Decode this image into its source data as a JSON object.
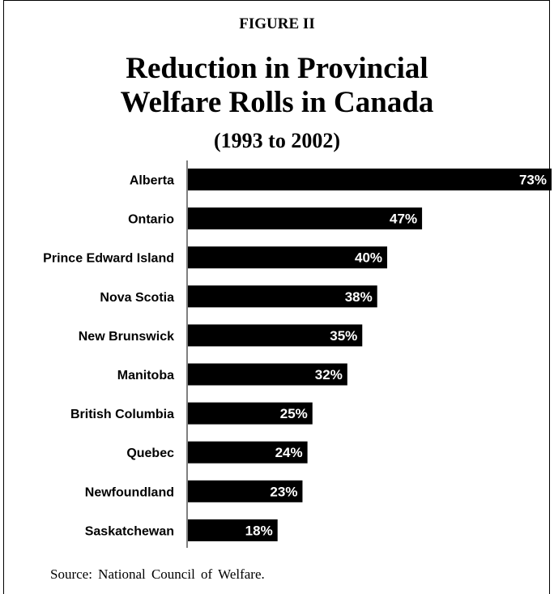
{
  "figure_label": "FIGURE II",
  "title_line1": "Reduction in Provincial",
  "title_line2": "Welfare Rolls in Canada",
  "subtitle": "(1993 to 2002)",
  "source": "Source:  National Council of Welfare.",
  "chart_data": {
    "type": "bar",
    "orientation": "horizontal",
    "title": "Reduction in Provincial Welfare Rolls in Canada",
    "subtitle": "(1993 to 2002)",
    "categories": [
      "Alberta",
      "Ontario",
      "Prince Edward Island",
      "Nova Scotia",
      "New Brunswick",
      "Manitoba",
      "British Columbia",
      "Quebec",
      "Newfoundland",
      "Saskatchewan"
    ],
    "values": [
      73,
      47,
      40,
      38,
      35,
      32,
      25,
      24,
      23,
      18
    ],
    "data_labels": [
      "73%",
      "47%",
      "40%",
      "38%",
      "35%",
      "32%",
      "25%",
      "24%",
      "23%",
      "18%"
    ],
    "xlim": [
      0,
      73
    ],
    "grid": false,
    "bar_color": "#000000",
    "label_color": "#ffffff"
  }
}
